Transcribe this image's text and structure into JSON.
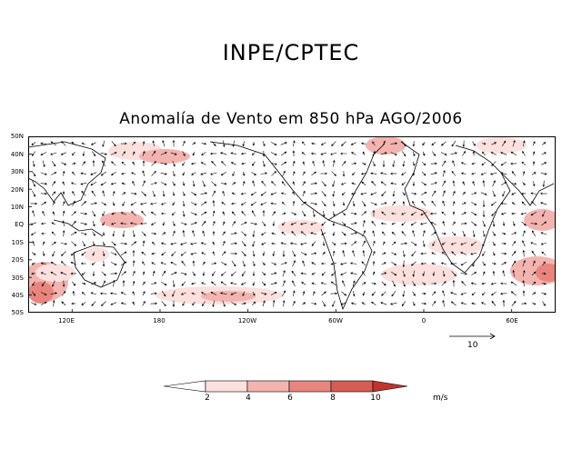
{
  "header": {
    "org": "INPE/CPTEC",
    "title": "Anomalía de Vento em 850 hPa AGO/2006"
  },
  "map": {
    "lat_labels": [
      "50N",
      "40N",
      "30N",
      "20N",
      "10N",
      "EQ",
      "10S",
      "20S",
      "30S",
      "40S",
      "50S"
    ],
    "lon_labels": [
      {
        "text": "120E",
        "lon": 120
      },
      {
        "text": "180",
        "lon": 180
      },
      {
        "text": "120W",
        "lon": 240
      },
      {
        "text": "60W",
        "lon": 300
      },
      {
        "text": "0",
        "lon": 360
      },
      {
        "text": "60E",
        "lon": 420
      }
    ],
    "lon_range": [
      90,
      450
    ],
    "lat_range": [
      -50,
      50
    ],
    "colors": {
      "shade_2": "#fbe0de",
      "shade_4": "#f3b4b0",
      "shade_6": "#e9857f",
      "shade_8": "#d75c56",
      "shade_10": "#c2332d"
    }
  },
  "reference_vector": {
    "label": "10"
  },
  "colorbar": {
    "labels": [
      "2",
      "4",
      "6",
      "8",
      "10"
    ],
    "units": "m/s",
    "colors": [
      "#ffffff",
      "#fbe0de",
      "#f3b4b0",
      "#e9857f",
      "#d75c56",
      "#c2332d"
    ]
  }
}
